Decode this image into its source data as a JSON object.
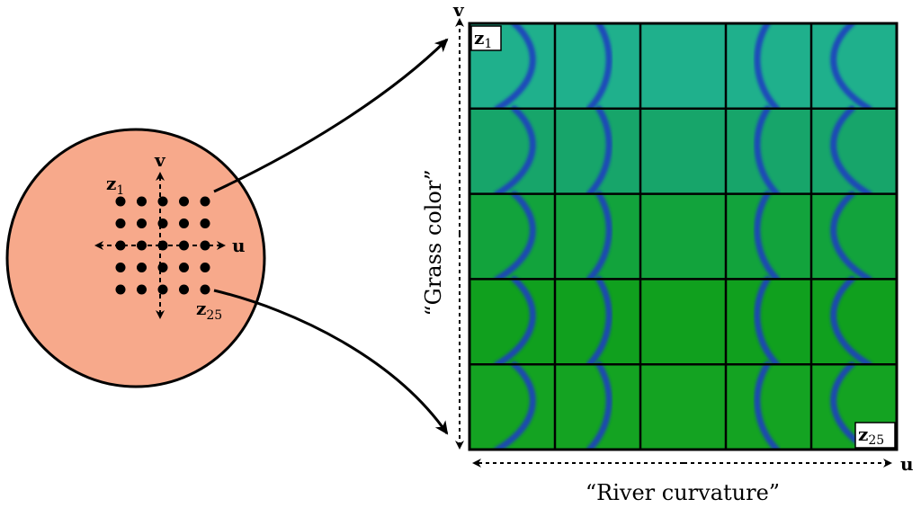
{
  "latent_space": {
    "fill_color": "#F7A98B",
    "point_grid": {
      "rows": 5,
      "cols": 5
    },
    "axis_u_label": "u",
    "axis_v_label": "v",
    "first_point_label": {
      "base": "z",
      "sub": "1"
    },
    "last_point_label": {
      "base": "z",
      "sub": "25"
    }
  },
  "image_grid": {
    "rows": 5,
    "cols": 5,
    "corner_top_left": {
      "base": "z",
      "sub": "1"
    },
    "corner_bottom_right": {
      "base": "z",
      "sub": "25"
    },
    "row_grass_colors": [
      "#1FB08C",
      "#17A56A",
      "#12A33C",
      "#10A01E",
      "#14A322"
    ],
    "river_color": "#1F3FBF",
    "column_river_shapes": [
      "strong-left-bend",
      "mild-left-bend",
      "straight",
      "mild-right-bend",
      "strong-right-bend"
    ]
  },
  "axes": {
    "horizontal_label": "u",
    "vertical_label": "v",
    "horizontal_caption": "“River curvature”",
    "vertical_caption": "“Grass color”"
  }
}
